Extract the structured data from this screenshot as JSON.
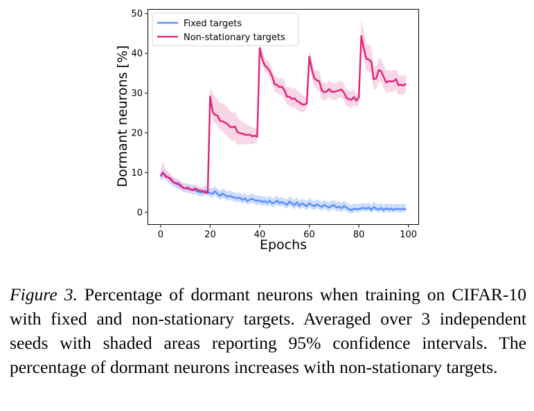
{
  "caption": {
    "label": "Figure 3.",
    "text": " Percentage of dormant neurons when training on CIFAR-10 with fixed and non-stationary targets. Averaged over 3 independent seeds with shaded areas reporting 95% confidence intervals. The percentage of dormant neurons increases with non-stationary targets."
  },
  "chart_data": {
    "type": "line",
    "xlabel": "Epochs",
    "ylabel": "Dormant neurons [%]",
    "xlim": [
      -5,
      104
    ],
    "ylim": [
      -3,
      51
    ],
    "xticks": [
      0,
      20,
      40,
      60,
      80,
      100
    ],
    "yticks": [
      0,
      10,
      20,
      30,
      40,
      50
    ],
    "grid": false,
    "legend_position": "top-left",
    "series": [
      {
        "name": "Fixed targets",
        "color": "#5b8ff9",
        "band_color": "#b9cdfc",
        "x": [
          0,
          1,
          2,
          3,
          4,
          5,
          6,
          7,
          8,
          9,
          10,
          11,
          12,
          13,
          14,
          15,
          16,
          17,
          18,
          19,
          20,
          21,
          22,
          23,
          24,
          25,
          26,
          27,
          28,
          29,
          30,
          31,
          32,
          33,
          34,
          35,
          36,
          37,
          38,
          39,
          40,
          41,
          42,
          43,
          44,
          45,
          46,
          47,
          48,
          49,
          50,
          51,
          52,
          53,
          54,
          55,
          56,
          57,
          58,
          59,
          60,
          61,
          62,
          63,
          64,
          65,
          66,
          67,
          68,
          69,
          70,
          71,
          72,
          73,
          74,
          75,
          76,
          77,
          78,
          79,
          80,
          81,
          82,
          83,
          84,
          85,
          86,
          87,
          88,
          89,
          90,
          91,
          92,
          93,
          94,
          95,
          96,
          97,
          98,
          99
        ],
        "y": [
          9.0,
          9.8,
          9.3,
          8.8,
          8.2,
          7.6,
          7.3,
          7.0,
          6.6,
          6.2,
          6.0,
          5.9,
          5.7,
          5.6,
          5.5,
          5.2,
          5.0,
          5.0,
          5.4,
          5.1,
          4.8,
          4.7,
          5.3,
          4.6,
          4.1,
          4.7,
          4.3,
          3.9,
          4.2,
          3.8,
          3.7,
          3.5,
          3.7,
          3.1,
          3.5,
          2.8,
          3.2,
          3.4,
          3.0,
          2.9,
          3.0,
          2.6,
          2.8,
          2.4,
          2.9,
          2.2,
          2.5,
          2.9,
          2.3,
          2.6,
          2.2,
          1.9,
          2.7,
          2.2,
          1.8,
          2.5,
          1.6,
          2.2,
          1.9,
          1.5,
          2.3,
          1.8,
          1.5,
          2.0,
          1.7,
          1.3,
          1.9,
          1.5,
          1.2,
          1.6,
          1.8,
          1.2,
          1.4,
          1.0,
          1.6,
          1.2,
          0.8,
          0.5,
          0.9,
          0.8,
          0.8,
          1.0,
          1.1,
          0.9,
          1.2,
          0.6,
          1.3,
          0.9,
          0.7,
          1.1,
          0.5,
          1.0,
          0.7,
          0.9,
          0.6,
          0.9,
          0.8,
          0.7,
          0.9,
          0.7
        ],
        "lower": [
          8.0,
          8.6,
          8.1,
          7.6,
          7.0,
          6.5,
          6.2,
          5.9,
          5.5,
          5.2,
          5.0,
          4.9,
          4.7,
          4.6,
          4.5,
          4.2,
          4.0,
          4.0,
          4.4,
          4.1,
          3.8,
          3.7,
          4.3,
          3.6,
          3.1,
          3.7,
          3.3,
          2.9,
          3.2,
          2.8,
          2.7,
          2.5,
          2.7,
          2.1,
          2.5,
          1.8,
          2.2,
          2.4,
          2.0,
          1.9,
          2.0,
          1.6,
          1.8,
          1.4,
          1.9,
          1.2,
          1.5,
          1.9,
          1.3,
          1.6,
          1.2,
          0.9,
          1.7,
          1.2,
          0.8,
          1.5,
          0.6,
          1.2,
          0.9,
          0.5,
          1.3,
          0.8,
          0.5,
          1.0,
          0.7,
          0.3,
          0.9,
          0.5,
          0.2,
          0.6,
          0.8,
          0.2,
          0.4,
          0.0,
          0.6,
          0.2,
          -0.2,
          -0.3,
          0.1,
          0.0,
          0.0,
          0.2,
          0.3,
          0.1,
          0.4,
          -0.2,
          0.5,
          0.1,
          -0.1,
          0.3,
          -0.3,
          0.2,
          -0.1,
          0.1,
          -0.2,
          0.1,
          0.0,
          -0.1,
          0.1,
          -0.1
        ],
        "upper": [
          10.5,
          11.2,
          10.6,
          10.1,
          9.5,
          8.9,
          8.6,
          8.3,
          7.9,
          7.5,
          7.3,
          7.2,
          7.0,
          6.9,
          6.8,
          6.5,
          6.3,
          6.3,
          6.7,
          6.4,
          6.1,
          6.0,
          6.6,
          5.9,
          5.4,
          6.0,
          5.6,
          5.2,
          5.5,
          5.1,
          5.0,
          4.8,
          5.0,
          4.4,
          4.8,
          4.1,
          4.5,
          4.7,
          4.3,
          4.2,
          4.3,
          3.9,
          4.1,
          3.7,
          4.2,
          3.5,
          3.8,
          4.2,
          3.6,
          3.9,
          3.5,
          3.2,
          4.0,
          3.5,
          3.1,
          3.8,
          2.9,
          3.5,
          3.2,
          2.8,
          3.6,
          3.1,
          2.8,
          3.3,
          3.0,
          2.6,
          3.2,
          2.8,
          2.5,
          2.9,
          3.1,
          2.5,
          2.7,
          2.3,
          2.9,
          2.5,
          2.1,
          1.8,
          2.2,
          2.1,
          2.1,
          2.3,
          2.4,
          2.2,
          2.5,
          1.9,
          2.6,
          2.2,
          2.0,
          2.4,
          1.8,
          2.3,
          2.0,
          2.2,
          1.9,
          2.2,
          2.1,
          2.0,
          2.2,
          2.0
        ]
      },
      {
        "name": "Non-stationary targets",
        "color": "#e0267a",
        "band_color": "#f6c4db",
        "x": [
          0,
          1,
          2,
          3,
          4,
          5,
          6,
          7,
          8,
          9,
          10,
          11,
          12,
          13,
          14,
          15,
          16,
          17,
          18,
          19,
          20,
          21,
          22,
          23,
          24,
          25,
          26,
          27,
          28,
          29,
          30,
          31,
          32,
          33,
          34,
          35,
          36,
          37,
          38,
          39,
          40,
          41,
          42,
          43,
          44,
          45,
          46,
          47,
          48,
          49,
          50,
          51,
          52,
          53,
          54,
          55,
          56,
          57,
          58,
          59,
          60,
          61,
          62,
          63,
          64,
          65,
          66,
          67,
          68,
          69,
          70,
          71,
          72,
          73,
          74,
          75,
          76,
          77,
          78,
          79,
          80,
          81,
          82,
          83,
          84,
          85,
          86,
          87,
          88,
          89,
          90,
          91,
          92,
          93,
          94,
          95,
          96,
          97,
          98,
          99
        ],
        "y": [
          9.3,
          10.0,
          9.0,
          8.8,
          8.5,
          7.7,
          7.3,
          7.3,
          6.8,
          6.2,
          6.0,
          6.2,
          5.8,
          5.6,
          6.0,
          5.6,
          5.4,
          5.4,
          4.9,
          4.9,
          29.2,
          25.3,
          24.5,
          24.3,
          23.0,
          22.9,
          22.6,
          22.2,
          21.5,
          21.4,
          21.6,
          20.2,
          19.9,
          19.8,
          19.5,
          19.5,
          19.5,
          19.1,
          19.3,
          19.0,
          41.3,
          38.6,
          37.0,
          36.4,
          35.6,
          34.2,
          32.3,
          32.0,
          31.5,
          31.6,
          30.7,
          29.1,
          29.1,
          28.5,
          28.7,
          28.0,
          27.7,
          27.2,
          27.1,
          27.4,
          39.2,
          36.1,
          33.8,
          33.2,
          33.0,
          30.7,
          30.2,
          30.4,
          31.0,
          30.3,
          30.3,
          30.5,
          30.7,
          30.9,
          30.1,
          28.8,
          28.5,
          28.3,
          29.0,
          28.1,
          28.9,
          44.4,
          41.3,
          38.6,
          38.5,
          37.9,
          33.5,
          33.7,
          35.8,
          35.5,
          34.1,
          32.7,
          33.0,
          32.9,
          33.0,
          33.5,
          32.0,
          32.1,
          31.9,
          32.4
        ],
        "lower": [
          8.5,
          8.8,
          8.1,
          7.9,
          7.5,
          6.9,
          6.5,
          6.5,
          6.0,
          5.5,
          5.3,
          5.5,
          5.1,
          4.9,
          5.3,
          4.9,
          4.7,
          4.7,
          4.3,
          4.3,
          27.5,
          22.8,
          22.3,
          21.8,
          20.7,
          20.4,
          19.8,
          19.0,
          18.3,
          17.8,
          18.0,
          17.1,
          17.0,
          17.3,
          17.0,
          17.2,
          17.3,
          17.0,
          17.4,
          17.4,
          40.0,
          37.2,
          35.5,
          34.9,
          33.8,
          32.3,
          30.5,
          30.0,
          29.5,
          29.5,
          28.5,
          27.0,
          27.0,
          26.3,
          26.4,
          25.8,
          25.5,
          25.0,
          25.4,
          26.2,
          37.5,
          34.0,
          31.8,
          30.9,
          30.6,
          28.5,
          28.1,
          28.4,
          29.0,
          28.3,
          28.3,
          28.5,
          28.7,
          28.9,
          28.1,
          26.8,
          26.5,
          26.3,
          27.0,
          26.6,
          27.2,
          41.5,
          38.3,
          35.6,
          35.5,
          34.9,
          30.8,
          31.0,
          33.0,
          32.8,
          31.4,
          30.0,
          30.3,
          30.3,
          30.4,
          30.9,
          29.5,
          29.7,
          29.6,
          30.2
        ],
        "upper": [
          11.0,
          13.0,
          10.8,
          10.3,
          9.7,
          8.8,
          8.3,
          8.2,
          7.6,
          7.0,
          6.8,
          7.0,
          6.6,
          6.4,
          6.8,
          6.4,
          6.2,
          6.2,
          5.6,
          5.6,
          31.5,
          30.0,
          29.0,
          28.5,
          27.5,
          27.5,
          27.0,
          26.5,
          25.5,
          25.0,
          25.5,
          24.0,
          23.2,
          22.8,
          22.2,
          22.0,
          21.8,
          21.3,
          21.3,
          20.8,
          42.8,
          40.5,
          39.0,
          38.3,
          37.5,
          36.2,
          34.3,
          34.2,
          33.6,
          34.0,
          33.2,
          31.5,
          31.5,
          31.0,
          31.4,
          30.6,
          30.3,
          29.7,
          29.2,
          28.8,
          40.8,
          38.3,
          36.0,
          35.6,
          35.5,
          33.1,
          32.5,
          32.6,
          33.2,
          32.5,
          32.5,
          32.7,
          32.9,
          33.1,
          32.3,
          31.0,
          30.7,
          30.5,
          31.2,
          29.7,
          30.6,
          48.5,
          45.8,
          42.6,
          42.3,
          41.7,
          37.0,
          36.8,
          38.8,
          38.5,
          37.0,
          35.6,
          35.8,
          35.6,
          35.7,
          36.1,
          34.5,
          34.6,
          34.3,
          34.8
        ]
      }
    ]
  }
}
